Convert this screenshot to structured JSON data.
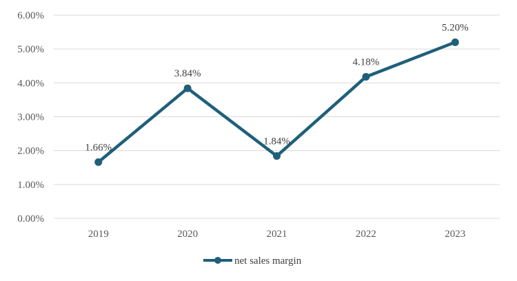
{
  "chart_data": {
    "type": "line",
    "categories": [
      "2019",
      "2020",
      "2021",
      "2022",
      "2023"
    ],
    "series": [
      {
        "name": "net sales margin",
        "values": [
          1.66,
          3.84,
          1.84,
          4.18,
          5.2
        ],
        "data_labels": [
          "1.66%",
          "3.84%",
          "1.84%",
          "4.18%",
          "5.20%"
        ],
        "color": "#1f5f7a"
      }
    ],
    "y_ticks": [
      "0.00%",
      "1.00%",
      "2.00%",
      "3.00%",
      "4.00%",
      "5.00%",
      "6.00%"
    ],
    "ylim": [
      0,
      6
    ],
    "title": "",
    "xlabel": "",
    "ylabel": "",
    "grid": true,
    "legend_position": "bottom"
  }
}
